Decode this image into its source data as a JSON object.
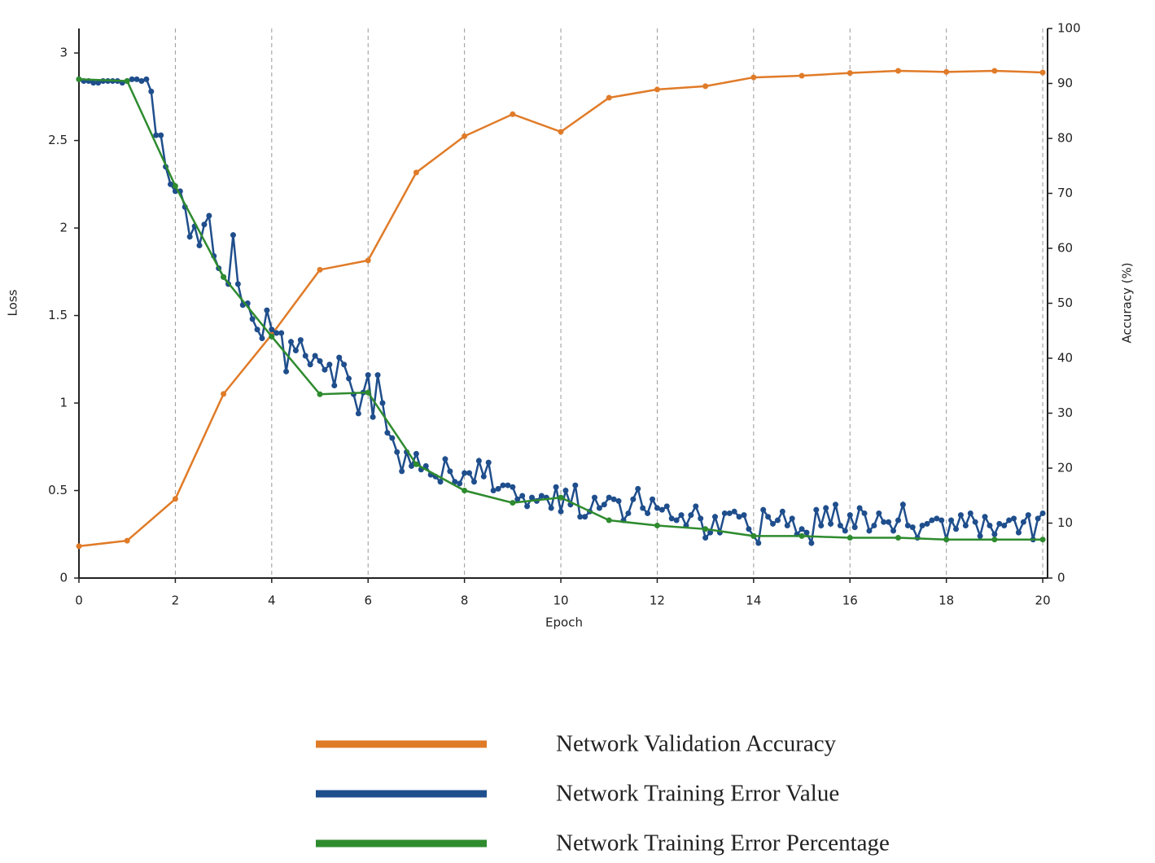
{
  "chart_data": {
    "type": "line",
    "xlabel": "Epoch",
    "ylabel": "Loss",
    "y2label": "Accuracy (%)",
    "xlim": [
      0,
      20.1
    ],
    "xticks": [
      0,
      2,
      4,
      6,
      8,
      10,
      12,
      14,
      16,
      18,
      20
    ],
    "ylim": [
      0,
      3.14
    ],
    "yticks": [
      0,
      0.5,
      1,
      1.5,
      2,
      2.5,
      3
    ],
    "y2lim": [
      0,
      100
    ],
    "y2ticks": [
      0,
      10,
      20,
      30,
      40,
      50,
      60,
      70,
      80,
      90,
      100
    ],
    "grid": "x",
    "series": [
      {
        "name": "Network Validation Accuracy",
        "color": "#e07b28",
        "axis": "y2",
        "x": [
          0,
          1,
          2,
          3,
          4,
          5,
          6,
          7,
          8,
          9,
          10,
          11,
          12,
          13,
          14,
          15,
          16,
          17,
          18,
          19,
          20
        ],
        "values": [
          5.8,
          6.8,
          14.4,
          33.5,
          44.3,
          56.1,
          57.8,
          73.8,
          80.4,
          84.4,
          81.2,
          87.4,
          88.9,
          89.5,
          91.1,
          91.4,
          91.9,
          92.3,
          92.1,
          92.3,
          92.0
        ]
      },
      {
        "name": "Network Training Error Value",
        "color": "#1f4e8c",
        "x": [
          0,
          0.1,
          0.2,
          0.3,
          0.4,
          0.5,
          0.6,
          0.7,
          0.8,
          0.9,
          1,
          1.1,
          1.2,
          1.3,
          1.4,
          1.5,
          1.6,
          1.7,
          1.8,
          1.9,
          2,
          2.1,
          2.2,
          2.3,
          2.4,
          2.5,
          2.6,
          2.7,
          2.8,
          2.9,
          3,
          3.1,
          3.2,
          3.3,
          3.4,
          3.5,
          3.6,
          3.7,
          3.8,
          3.9,
          4,
          4.1,
          4.2,
          4.3,
          4.4,
          4.5,
          4.6,
          4.7,
          4.8,
          4.9,
          5,
          5.1,
          5.2,
          5.3,
          5.4,
          5.5,
          5.6,
          5.7,
          5.8,
          5.9,
          6,
          6.1,
          6.2,
          6.3,
          6.4,
          6.5,
          6.6,
          6.7,
          6.8,
          6.9,
          7,
          7.1,
          7.2,
          7.3,
          7.4,
          7.5,
          7.6,
          7.7,
          7.8,
          7.9,
          8,
          8.1,
          8.2,
          8.3,
          8.4,
          8.5,
          8.6,
          8.7,
          8.8,
          8.9,
          9,
          9.1,
          9.2,
          9.3,
          9.4,
          9.5,
          9.6,
          9.7,
          9.8,
          9.9,
          10,
          10.1,
          10.2,
          10.3,
          10.4,
          10.5,
          10.6,
          10.7,
          10.8,
          10.9,
          11,
          11.1,
          11.2,
          11.3,
          11.4,
          11.5,
          11.6,
          11.7,
          11.8,
          11.9,
          12,
          12.1,
          12.2,
          12.3,
          12.4,
          12.5,
          12.6,
          12.7,
          12.8,
          12.9,
          13,
          13.1,
          13.2,
          13.3,
          13.4,
          13.5,
          13.6,
          13.7,
          13.8,
          13.9,
          14,
          14.1,
          14.2,
          14.3,
          14.4,
          14.5,
          14.6,
          14.7,
          14.8,
          14.9,
          15,
          15.1,
          15.2,
          15.3,
          15.4,
          15.5,
          15.6,
          15.7,
          15.8,
          15.9,
          16,
          16.1,
          16.2,
          16.3,
          16.4,
          16.5,
          16.6,
          16.7,
          16.8,
          16.9,
          17,
          17.1,
          17.2,
          17.3,
          17.4,
          17.5,
          17.6,
          17.7,
          17.8,
          17.9,
          18,
          18.1,
          18.2,
          18.3,
          18.4,
          18.5,
          18.6,
          18.7,
          18.8,
          18.9,
          19,
          19.1,
          19.2,
          19.3,
          19.4,
          19.5,
          19.6,
          19.7,
          19.8,
          19.9,
          20
        ],
        "values": [
          2.85,
          2.84,
          2.84,
          2.83,
          2.83,
          2.84,
          2.84,
          2.84,
          2.84,
          2.83,
          2.84,
          2.85,
          2.85,
          2.84,
          2.85,
          2.78,
          2.53,
          2.53,
          2.35,
          2.25,
          2.21,
          2.21,
          2.12,
          1.95,
          2.01,
          1.9,
          2.02,
          2.07,
          1.84,
          1.77,
          1.72,
          1.68,
          1.96,
          1.68,
          1.56,
          1.57,
          1.48,
          1.42,
          1.37,
          1.53,
          1.42,
          1.4,
          1.4,
          1.18,
          1.35,
          1.3,
          1.36,
          1.27,
          1.22,
          1.27,
          1.24,
          1.19,
          1.22,
          1.1,
          1.26,
          1.22,
          1.14,
          1.05,
          0.94,
          1.06,
          1.16,
          0.92,
          1.16,
          1.0,
          0.83,
          0.8,
          0.72,
          0.61,
          0.72,
          0.64,
          0.71,
          0.62,
          0.64,
          0.59,
          0.58,
          0.55,
          0.68,
          0.61,
          0.55,
          0.54,
          0.6,
          0.6,
          0.55,
          0.67,
          0.58,
          0.66,
          0.5,
          0.51,
          0.53,
          0.53,
          0.52,
          0.45,
          0.47,
          0.41,
          0.46,
          0.44,
          0.47,
          0.46,
          0.4,
          0.52,
          0.38,
          0.5,
          0.42,
          0.53,
          0.35,
          0.35,
          0.38,
          0.46,
          0.4,
          0.42,
          0.46,
          0.45,
          0.44,
          0.33,
          0.37,
          0.45,
          0.51,
          0.4,
          0.37,
          0.45,
          0.4,
          0.39,
          0.41,
          0.34,
          0.33,
          0.36,
          0.3,
          0.36,
          0.41,
          0.34,
          0.23,
          0.26,
          0.35,
          0.26,
          0.37,
          0.37,
          0.38,
          0.35,
          0.36,
          0.28,
          0.24,
          0.2,
          0.39,
          0.35,
          0.31,
          0.33,
          0.38,
          0.3,
          0.34,
          0.25,
          0.28,
          0.26,
          0.2,
          0.39,
          0.3,
          0.4,
          0.31,
          0.42,
          0.3,
          0.27,
          0.36,
          0.29,
          0.4,
          0.37,
          0.27,
          0.3,
          0.37,
          0.32,
          0.32,
          0.27,
          0.33,
          0.42,
          0.3,
          0.29,
          0.23,
          0.3,
          0.31,
          0.33,
          0.34,
          0.33,
          0.22,
          0.33,
          0.28,
          0.36,
          0.3,
          0.37,
          0.32,
          0.24,
          0.35,
          0.3,
          0.25,
          0.31,
          0.3,
          0.33,
          0.34,
          0.26,
          0.32,
          0.36,
          0.22,
          0.34,
          0.37
        ]
      },
      {
        "name": "Network Training Error Percentage",
        "color": "#2e8b2e",
        "x": [
          0,
          1,
          2,
          3,
          4,
          5,
          6,
          7,
          8,
          9,
          10,
          11,
          12,
          13,
          14,
          15,
          16,
          17,
          18,
          19,
          20
        ],
        "values": [
          2.85,
          2.84,
          2.24,
          1.72,
          1.38,
          1.05,
          1.06,
          0.65,
          0.5,
          0.43,
          0.46,
          0.33,
          0.3,
          0.28,
          0.24,
          0.24,
          0.23,
          0.23,
          0.22,
          0.22,
          0.22
        ]
      }
    ]
  }
}
